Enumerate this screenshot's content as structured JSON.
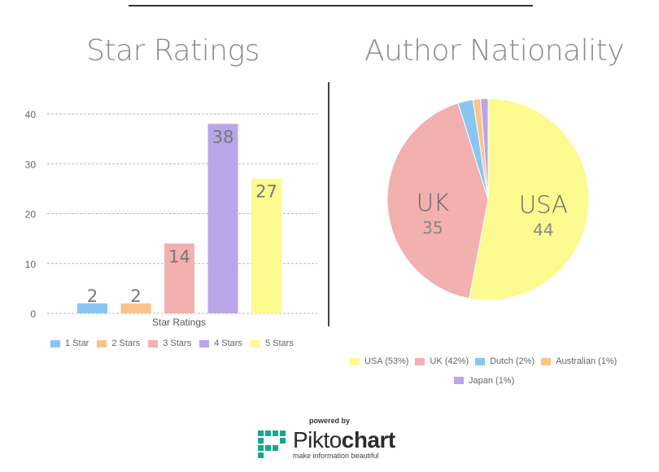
{
  "chart_data": [
    {
      "type": "bar",
      "title": "Star Ratings",
      "xlabel": "Star Ratings",
      "ylabel": "",
      "ylim": [
        0,
        40
      ],
      "yticks": [
        0,
        10,
        20,
        30,
        40
      ],
      "grid": true,
      "categories": [
        "1 Star",
        "2 Stars",
        "3 Stars",
        "4 Stars",
        "5 Stars"
      ],
      "values": [
        2,
        2,
        14,
        38,
        27
      ],
      "colors": [
        "#88c6f1",
        "#f9c48a",
        "#f2b0ae",
        "#b9a5e8",
        "#fbfb90"
      ],
      "legend_position": "bottom"
    },
    {
      "type": "pie",
      "title": "Author Nationality",
      "slices": [
        {
          "name": "USA",
          "value": 44,
          "legend": "USA (53%)",
          "color": "#fbfb90",
          "labeled": true
        },
        {
          "name": "UK",
          "value": 35,
          "legend": "UK (42%)",
          "color": "#f2b0ae",
          "labeled": true
        },
        {
          "name": "Dutch",
          "value": 2,
          "legend": "Dutch (2%)",
          "color": "#88c6f1",
          "labeled": false
        },
        {
          "name": "Australian",
          "value": 1,
          "legend": "Australian (1%)",
          "color": "#f9c48a",
          "labeled": false
        },
        {
          "name": "Japan",
          "value": 1,
          "legend": "Japan (1%)",
          "color": "#b9a5e8",
          "labeled": false
        }
      ],
      "legend_position": "bottom"
    }
  ],
  "footer": {
    "powered_by": "powered by",
    "brand_light": "Pikto",
    "brand_bold": "chart",
    "tagline": "make information beautiful",
    "logo_color": "#1aa58f"
  }
}
